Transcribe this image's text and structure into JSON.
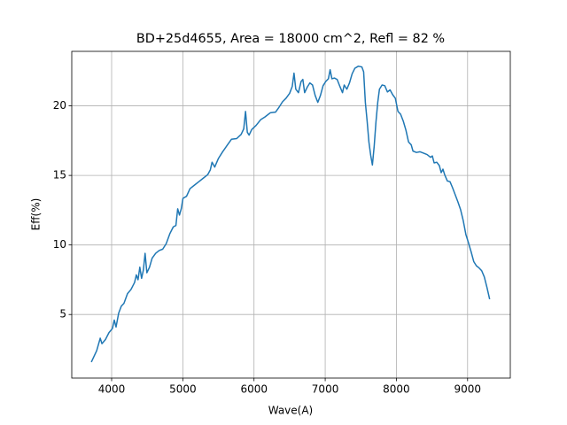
{
  "chart_data": {
    "type": "line",
    "title": "BD+25d4655, Area = 18000 cm^2, Refl = 82 %",
    "x_label": "Wave(A)",
    "y_label": "Eff(%)",
    "x": [
      3715,
      3790,
      3840,
      3864,
      3913,
      3963,
      4012,
      4037,
      4062,
      4099,
      4136,
      4173,
      4223,
      4272,
      4322,
      4347,
      4371,
      4396,
      4421,
      4446,
      4470,
      4495,
      4532,
      4569,
      4619,
      4668,
      4718,
      4767,
      4817,
      4866,
      4903,
      4928,
      4953,
      4978,
      5002,
      5052,
      5101,
      5163,
      5225,
      5287,
      5349,
      5386,
      5411,
      5448,
      5498,
      5559,
      5621,
      5683,
      5757,
      5819,
      5856,
      5881,
      5906,
      5931,
      5968,
      6030,
      6092,
      6153,
      6228,
      6302,
      6351,
      6401,
      6450,
      6500,
      6537,
      6562,
      6587,
      6624,
      6661,
      6686,
      6711,
      6748,
      6785,
      6822,
      6859,
      6896,
      6933,
      6970,
      7007,
      7045,
      7069,
      7094,
      7131,
      7168,
      7206,
      7243,
      7267,
      7304,
      7341,
      7378,
      7416,
      7465,
      7515,
      7540,
      7564,
      7589,
      7614,
      7639,
      7663,
      7688,
      7713,
      7738,
      7762,
      7799,
      7837,
      7874,
      7911,
      7948,
      7985,
      8022,
      8059,
      8097,
      8134,
      8171,
      8208,
      8233,
      8282,
      8332,
      8381,
      8431,
      8480,
      8505,
      8530,
      8567,
      8604,
      8629,
      8654,
      8678,
      8716,
      8753,
      8790,
      8827,
      8864,
      8901,
      8939,
      8976,
      9013,
      9050,
      9087,
      9124,
      9161,
      9198,
      9235,
      9272,
      9310
    ],
    "values": [
      1.58,
      2.4,
      3.3,
      2.9,
      3.2,
      3.7,
      4.0,
      4.6,
      4.1,
      5.1,
      5.6,
      5.8,
      6.5,
      6.8,
      7.3,
      7.85,
      7.5,
      8.4,
      7.6,
      8.2,
      9.4,
      8.0,
      8.4,
      9.05,
      9.4,
      9.6,
      9.7,
      10.1,
      10.8,
      11.3,
      11.4,
      12.6,
      12.15,
      12.6,
      13.35,
      13.5,
      14.05,
      14.3,
      14.55,
      14.8,
      15.05,
      15.4,
      15.95,
      15.6,
      16.2,
      16.7,
      17.15,
      17.6,
      17.65,
      17.95,
      18.35,
      19.6,
      18.1,
      17.9,
      18.3,
      18.6,
      19.0,
      19.2,
      19.5,
      19.55,
      19.9,
      20.3,
      20.55,
      20.9,
      21.4,
      22.35,
      21.2,
      20.95,
      21.75,
      21.9,
      20.95,
      21.35,
      21.65,
      21.5,
      20.75,
      20.25,
      20.75,
      21.45,
      21.75,
      21.95,
      22.6,
      21.95,
      22.0,
      21.9,
      21.4,
      20.95,
      21.5,
      21.2,
      21.65,
      22.3,
      22.7,
      22.85,
      22.8,
      22.45,
      20.25,
      18.9,
      17.4,
      16.45,
      15.75,
      17.1,
      18.85,
      20.25,
      21.2,
      21.5,
      21.45,
      21.0,
      21.15,
      20.8,
      20.55,
      19.6,
      19.4,
      18.9,
      18.25,
      17.4,
      17.2,
      16.75,
      16.65,
      16.7,
      16.6,
      16.5,
      16.3,
      16.4,
      15.9,
      15.95,
      15.7,
      15.2,
      15.45,
      15.05,
      14.6,
      14.55,
      14.1,
      13.6,
      13.1,
      12.55,
      11.75,
      10.75,
      10.15,
      9.5,
      8.8,
      8.5,
      8.35,
      8.15,
      7.7,
      6.95,
      6.1
    ],
    "color": "#1f77b4",
    "xlim": [
      3440,
      9600
    ],
    "xticks": [
      4000,
      5000,
      6000,
      7000,
      8000,
      9000
    ],
    "ylim": [
      0.43,
      23.92
    ],
    "yticks": [
      5,
      10,
      15,
      20
    ],
    "grid": true
  }
}
